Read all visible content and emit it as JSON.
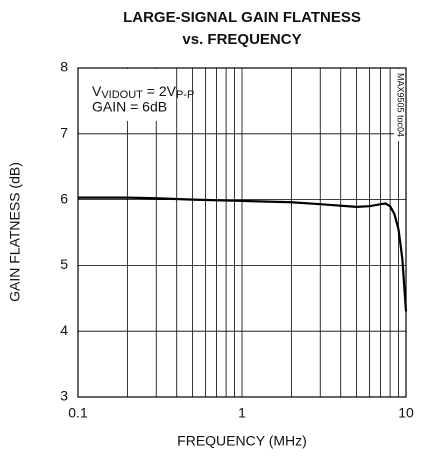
{
  "chart_data": {
    "type": "line",
    "title": [
      "LARGE-SIGNAL GAIN FLATNESS",
      "vs. FREQUENCY"
    ],
    "xlabel": "FREQUENCY (MHz)",
    "ylabel": "GAIN FLATNESS (dB)",
    "side_label": "MAX9505 toc04",
    "annotation_line1": [
      "V",
      "VIDOUT",
      " = 2V",
      "P-P"
    ],
    "annotation_line2": "GAIN = 6dB",
    "xscale": "log",
    "xlim": [
      0.1,
      10
    ],
    "ylim": [
      3,
      8
    ],
    "xticks": [
      0.1,
      1,
      10
    ],
    "xminorticks": [
      0.2,
      0.3,
      0.4,
      0.5,
      0.6,
      0.7,
      0.8,
      0.9,
      2,
      3,
      4,
      5,
      6,
      7,
      8,
      9
    ],
    "yticks": [
      3,
      4,
      5,
      6,
      7,
      8
    ],
    "grid": true,
    "series": [
      {
        "color": "#000000",
        "x": [
          0.1,
          0.2,
          0.3,
          0.5,
          1,
          2,
          3,
          5,
          6,
          7,
          7.5,
          8,
          8.5,
          9,
          9.5,
          10
        ],
        "values": [
          6.03,
          6.03,
          6.02,
          6.0,
          5.98,
          5.96,
          5.93,
          5.89,
          5.9,
          5.93,
          5.94,
          5.9,
          5.78,
          5.55,
          5.1,
          4.3
        ]
      }
    ]
  }
}
